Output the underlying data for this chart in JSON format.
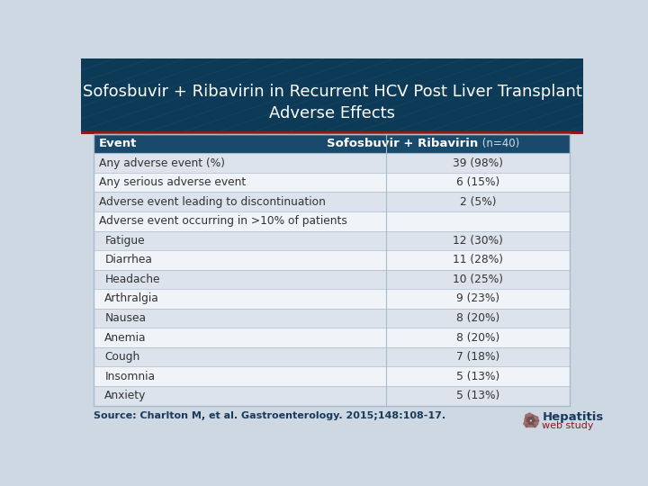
{
  "title_line1": "Sofosbuvir + Ribavirin in Recurrent HCV Post Liver Transplant",
  "title_line2": "Adverse Effects",
  "title_bg_top": "#0a2a40",
  "title_bg_bottom": "#0e3d5c",
  "title_font_color": "#ffffff",
  "header_bg_color": "#1a4a6b",
  "header_font_color": "#ffffff",
  "rows": [
    {
      "event": "Any adverse event (%)",
      "value": "39 (98%)",
      "indent": false,
      "category": false
    },
    {
      "event": "Any serious adverse event",
      "value": "6 (15%)",
      "indent": false,
      "category": false
    },
    {
      "event": "Adverse event leading to discontinuation",
      "value": "2 (5%)",
      "indent": false,
      "category": false
    },
    {
      "event": "Adverse event occurring in >10% of patients",
      "value": "",
      "indent": false,
      "category": true
    },
    {
      "event": "Fatigue",
      "value": "12 (30%)",
      "indent": true,
      "category": false
    },
    {
      "event": "Diarrhea",
      "value": "11 (28%)",
      "indent": true,
      "category": false
    },
    {
      "event": "Headache",
      "value": "10 (25%)",
      "indent": true,
      "category": false
    },
    {
      "event": "Arthralgia",
      "value": "9 (23%)",
      "indent": true,
      "category": false
    },
    {
      "event": "Nausea",
      "value": "8 (20%)",
      "indent": true,
      "category": false
    },
    {
      "event": "Anemia",
      "value": "8 (20%)",
      "indent": true,
      "category": false
    },
    {
      "event": "Cough",
      "value": "7 (18%)",
      "indent": true,
      "category": false
    },
    {
      "event": "Insomnia",
      "value": "5 (13%)",
      "indent": true,
      "category": false
    },
    {
      "event": "Anxiety",
      "value": "5 (13%)",
      "indent": true,
      "category": false
    }
  ],
  "row_color_light": "#dce3ec",
  "row_color_white": "#f0f3f7",
  "row_color_category": "#f0f3f7",
  "border_color": "#aabbcc",
  "text_color": "#333333",
  "accent_color": "#8b1a1a",
  "source_text": "Source: Charlton M, et al. Gastroenterology. 2015;148:108-17.",
  "source_color": "#1a3a5c",
  "outer_bg_color": "#cdd8e3",
  "table_bg": "#f0f3f7",
  "col_split": 0.615
}
